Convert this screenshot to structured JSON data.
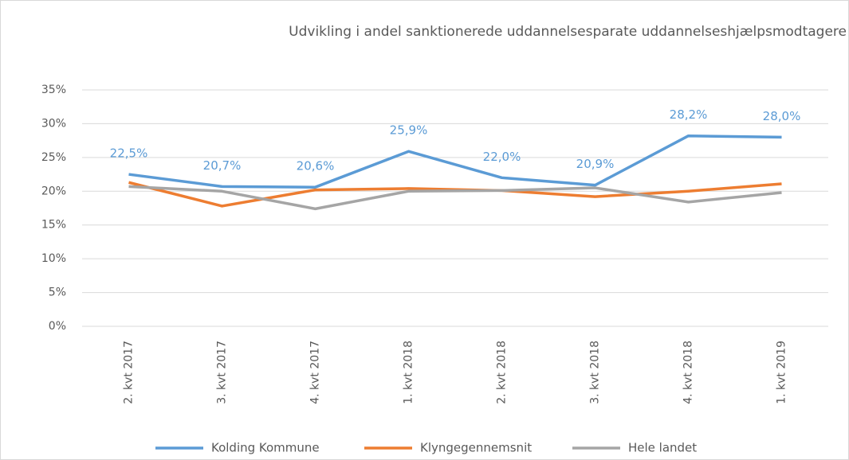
{
  "chart_data": {
    "type": "line",
    "title": "Udvikling i andel sanktionerede uddannelsesparate uddannelseshjælpsmodtagere",
    "categories": [
      "2. kvt 2017",
      "3. kvt 2017",
      "4. kvt 2017",
      "1. kvt 2018",
      "2. kvt 2018",
      "3. kvt 2018",
      "4. kvt 2018",
      "1. kvt 2019"
    ],
    "series": [
      {
        "name": "Kolding Kommune",
        "color": "#5b9bd5",
        "values": [
          22.5,
          20.7,
          20.6,
          25.9,
          22.0,
          20.9,
          28.2,
          28.0
        ],
        "value_labels": [
          "22,5%",
          "20,7%",
          "20,6%",
          "25,9%",
          "22,0%",
          "20,9%",
          "28,2%",
          "28,0%"
        ]
      },
      {
        "name": "Klyngegennemsnit",
        "color": "#ed7d31",
        "values": [
          21.3,
          17.8,
          20.2,
          20.4,
          20.1,
          19.2,
          20.0,
          21.1
        ]
      },
      {
        "name": "Hele landet",
        "color": "#a5a5a5",
        "values": [
          20.7,
          20.0,
          17.4,
          20.0,
          20.1,
          20.5,
          18.4,
          19.8
        ]
      }
    ],
    "ylim": [
      0,
      35
    ],
    "yticks": [
      {
        "value": 0,
        "label": "0%"
      },
      {
        "value": 5,
        "label": "5%"
      },
      {
        "value": 10,
        "label": "10%"
      },
      {
        "value": 15,
        "label": "15%"
      },
      {
        "value": 20,
        "label": "20%"
      },
      {
        "value": 25,
        "label": "25%"
      },
      {
        "value": 30,
        "label": "30%"
      },
      {
        "value": 35,
        "label": "35%"
      }
    ],
    "grid": true,
    "legend": "bottom"
  }
}
